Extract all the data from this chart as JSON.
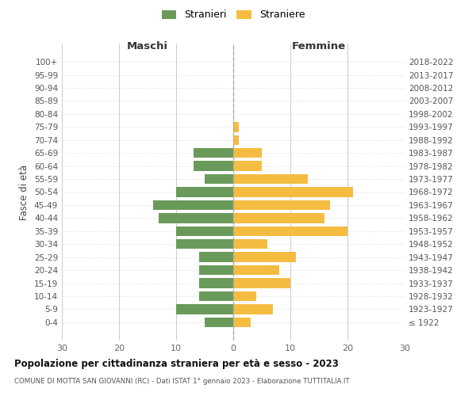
{
  "age_groups": [
    "100+",
    "95-99",
    "90-94",
    "85-89",
    "80-84",
    "75-79",
    "70-74",
    "65-69",
    "60-64",
    "55-59",
    "50-54",
    "45-49",
    "40-44",
    "35-39",
    "30-34",
    "25-29",
    "20-24",
    "15-19",
    "10-14",
    "5-9",
    "0-4"
  ],
  "birth_years": [
    "≤ 1922",
    "1923-1927",
    "1928-1932",
    "1933-1937",
    "1938-1942",
    "1943-1947",
    "1948-1952",
    "1953-1957",
    "1958-1962",
    "1963-1967",
    "1968-1972",
    "1973-1977",
    "1978-1982",
    "1983-1987",
    "1988-1992",
    "1993-1997",
    "1998-2002",
    "2003-2007",
    "2008-2012",
    "2013-2017",
    "2018-2022"
  ],
  "maschi": [
    0,
    0,
    0,
    0,
    0,
    0,
    0,
    7,
    7,
    5,
    10,
    14,
    13,
    10,
    10,
    6,
    6,
    6,
    6,
    10,
    5
  ],
  "femmine": [
    0,
    0,
    0,
    0,
    0,
    1,
    1,
    5,
    5,
    13,
    21,
    17,
    16,
    20,
    6,
    11,
    8,
    10,
    4,
    7,
    3
  ],
  "male_color": "#6a9a5a",
  "female_color": "#f5bc42",
  "xlim": 30,
  "title": "Popolazione per cittadinanza straniera per età e sesso - 2023",
  "subtitle": "COMUNE DI MOTTA SAN GIOVANNI (RC) - Dati ISTAT 1° gennaio 2023 - Elaborazione TUTTITALIA.IT",
  "left_label": "Maschi",
  "right_label": "Femmine",
  "ylabel_left": "Fasce di età",
  "legend_male": "Stranieri",
  "legend_female": "Straniere",
  "bg_color": "#ffffff",
  "grid_color": "#cccccc"
}
